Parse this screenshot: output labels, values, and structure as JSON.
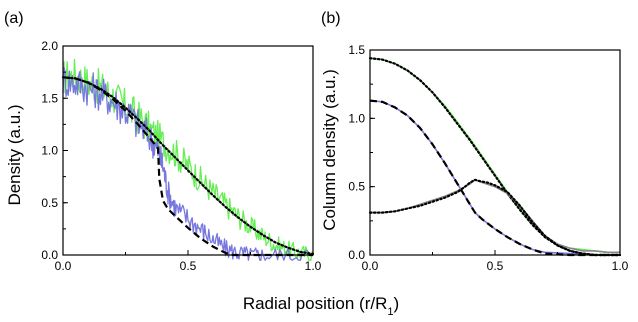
{
  "figure": {
    "shared_xlabel_prefix": "Radial position (r/R",
    "shared_xlabel_subscript": "1",
    "shared_xlabel_suffix": ")"
  },
  "colors": {
    "green": "#66ee55",
    "blue": "#7777dd",
    "gray": "#888888",
    "black": "#000000"
  },
  "chart_data": [
    {
      "panel_label": "(a)",
      "type": "line",
      "ylabel": "Density (a.u.)",
      "xlim": [
        0,
        1.0
      ],
      "ylim": [
        0,
        2.0
      ],
      "xticks": [
        "0.0",
        "0.5",
        "1.0"
      ],
      "yticks": [
        "0.0",
        "0.5",
        "1.0",
        "1.5",
        "2.0"
      ],
      "series": [
        {
          "color": "green",
          "style": "noisy solid",
          "x": [
            0.0,
            0.05,
            0.1,
            0.15,
            0.2,
            0.25,
            0.3,
            0.35,
            0.4,
            0.45,
            0.5,
            0.55,
            0.6,
            0.65,
            0.7,
            0.75,
            0.8,
            0.85,
            0.9,
            0.95,
            1.0
          ],
          "y": [
            1.7,
            1.72,
            1.65,
            1.6,
            1.52,
            1.42,
            1.32,
            1.2,
            1.08,
            0.97,
            0.85,
            0.72,
            0.6,
            0.48,
            0.37,
            0.27,
            0.18,
            0.1,
            0.05,
            0.02,
            0.0
          ]
        },
        {
          "color": "blue",
          "style": "noisy solid",
          "x": [
            0.0,
            0.05,
            0.1,
            0.15,
            0.2,
            0.25,
            0.3,
            0.35,
            0.38,
            0.4,
            0.42,
            0.45,
            0.5,
            0.55,
            0.6,
            0.65,
            0.7,
            0.75,
            0.8,
            0.9,
            1.0
          ],
          "y": [
            1.68,
            1.65,
            1.6,
            1.55,
            1.47,
            1.38,
            1.25,
            1.12,
            1.0,
            0.85,
            0.6,
            0.45,
            0.35,
            0.25,
            0.15,
            0.06,
            0.02,
            0.0,
            0.0,
            0.0,
            0.0
          ]
        },
        {
          "color": "black",
          "style": "dotted",
          "x": [
            0.0,
            0.05,
            0.1,
            0.15,
            0.2,
            0.25,
            0.3,
            0.35,
            0.4,
            0.45,
            0.5,
            0.55,
            0.6,
            0.65,
            0.7,
            0.75,
            0.8,
            0.85,
            0.9,
            0.95,
            1.0
          ],
          "y": [
            1.7,
            1.69,
            1.65,
            1.59,
            1.51,
            1.41,
            1.3,
            1.18,
            1.05,
            0.93,
            0.81,
            0.69,
            0.57,
            0.46,
            0.36,
            0.27,
            0.19,
            0.12,
            0.07,
            0.03,
            0.01
          ]
        },
        {
          "color": "black",
          "style": "dashed",
          "x": [
            0.0,
            0.05,
            0.1,
            0.15,
            0.2,
            0.25,
            0.3,
            0.35,
            0.38,
            0.385,
            0.4,
            0.42,
            0.45,
            0.5,
            0.55,
            0.6,
            0.65,
            0.68,
            0.7,
            0.8,
            0.9,
            1.0
          ],
          "y": [
            1.7,
            1.69,
            1.65,
            1.58,
            1.49,
            1.38,
            1.25,
            1.11,
            1.02,
            0.73,
            0.52,
            0.44,
            0.37,
            0.26,
            0.16,
            0.08,
            0.02,
            0.0,
            0.0,
            0.0,
            0.0,
            0.0
          ]
        }
      ]
    },
    {
      "panel_label": "(b)",
      "type": "line",
      "ylabel": "Column density (a.u.)",
      "xlim": [
        0,
        1.0
      ],
      "ylim": [
        0,
        1.5
      ],
      "xticks": [
        "0.0",
        "0.5",
        "1.0"
      ],
      "yticks": [
        "0.0",
        "0.5",
        "1.0",
        "1.5"
      ],
      "series": [
        {
          "color": "green",
          "style": "solid",
          "x": [
            0.0,
            0.05,
            0.1,
            0.15,
            0.2,
            0.25,
            0.3,
            0.35,
            0.4,
            0.45,
            0.5,
            0.55,
            0.6,
            0.65,
            0.7,
            0.75,
            0.8,
            0.85,
            0.9,
            0.95,
            1.0
          ],
          "y": [
            1.44,
            1.43,
            1.4,
            1.35,
            1.28,
            1.19,
            1.09,
            0.97,
            0.85,
            0.72,
            0.59,
            0.46,
            0.34,
            0.23,
            0.14,
            0.08,
            0.05,
            0.04,
            0.03,
            0.02,
            0.02
          ]
        },
        {
          "color": "black",
          "style": "dotted",
          "x": [
            0.0,
            0.05,
            0.1,
            0.15,
            0.2,
            0.25,
            0.3,
            0.35,
            0.4,
            0.45,
            0.5,
            0.55,
            0.6,
            0.65,
            0.7,
            0.75,
            0.8,
            0.85,
            0.9,
            0.95,
            1.0
          ],
          "y": [
            1.44,
            1.43,
            1.4,
            1.35,
            1.28,
            1.19,
            1.08,
            0.96,
            0.84,
            0.71,
            0.58,
            0.45,
            0.33,
            0.22,
            0.13,
            0.07,
            0.03,
            0.01,
            0.0,
            0.0,
            0.0
          ]
        },
        {
          "color": "blue",
          "style": "solid",
          "x": [
            0.0,
            0.05,
            0.1,
            0.15,
            0.2,
            0.25,
            0.3,
            0.35,
            0.38,
            0.4,
            0.42,
            0.45,
            0.5,
            0.55,
            0.6,
            0.65,
            0.7,
            0.8,
            0.9,
            1.0
          ],
          "y": [
            1.13,
            1.12,
            1.08,
            1.02,
            0.93,
            0.81,
            0.67,
            0.52,
            0.43,
            0.37,
            0.31,
            0.26,
            0.19,
            0.13,
            0.08,
            0.04,
            0.02,
            0.01,
            0.0,
            0.0
          ]
        },
        {
          "color": "black",
          "style": "dashed",
          "x": [
            0.0,
            0.05,
            0.1,
            0.15,
            0.2,
            0.25,
            0.3,
            0.35,
            0.38,
            0.4,
            0.42,
            0.45,
            0.5,
            0.55,
            0.6,
            0.65,
            0.7,
            0.8,
            0.9,
            1.0
          ],
          "y": [
            1.13,
            1.12,
            1.08,
            1.02,
            0.93,
            0.81,
            0.67,
            0.52,
            0.43,
            0.37,
            0.31,
            0.26,
            0.19,
            0.13,
            0.08,
            0.04,
            0.01,
            0.0,
            0.0,
            0.0
          ]
        },
        {
          "color": "gray",
          "style": "solid",
          "x": [
            0.0,
            0.05,
            0.1,
            0.15,
            0.2,
            0.25,
            0.3,
            0.35,
            0.4,
            0.42,
            0.45,
            0.5,
            0.55,
            0.6,
            0.65,
            0.7,
            0.75,
            0.8,
            0.85,
            0.9,
            0.95,
            1.0
          ],
          "y": [
            0.31,
            0.31,
            0.32,
            0.34,
            0.37,
            0.4,
            0.43,
            0.47,
            0.52,
            0.55,
            0.53,
            0.5,
            0.45,
            0.36,
            0.25,
            0.14,
            0.08,
            0.05,
            0.03,
            0.03,
            0.02,
            0.02
          ]
        },
        {
          "color": "black",
          "style": "dotted",
          "x": [
            0.0,
            0.05,
            0.1,
            0.15,
            0.2,
            0.25,
            0.3,
            0.35,
            0.38,
            0.4,
            0.42,
            0.44,
            0.47,
            0.5,
            0.55,
            0.6,
            0.65,
            0.7,
            0.75,
            0.8,
            0.85,
            0.9,
            0.95,
            1.0
          ],
          "y": [
            0.31,
            0.31,
            0.32,
            0.34,
            0.36,
            0.39,
            0.42,
            0.46,
            0.5,
            0.53,
            0.55,
            0.54,
            0.53,
            0.51,
            0.46,
            0.36,
            0.24,
            0.14,
            0.07,
            0.03,
            0.01,
            0.0,
            0.0,
            0.0
          ]
        }
      ]
    }
  ]
}
